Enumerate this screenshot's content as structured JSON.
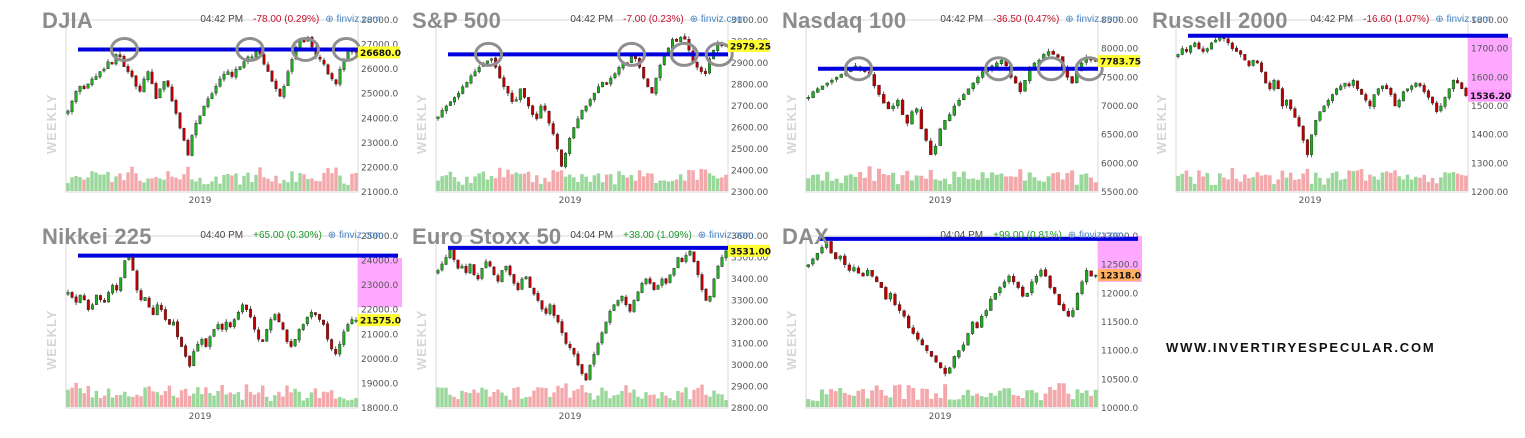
{
  "watermark": "WWW.INVERTIRYESPECULAR.COM",
  "brand": "finviz.com",
  "period_label": "WEEKLY",
  "colors": {
    "up": "#1faa1f",
    "down": "#c00000",
    "vol_up": "#9ad79a",
    "vol_down": "#f3a9ab",
    "resistance": "#0000dd",
    "price_tag_yellow": "#ffff33",
    "zone_pink": "#ff99ff",
    "circle": "#8f8f8f",
    "axis_text": "#555555",
    "title": "#8c8c8c"
  },
  "chart_data": [
    {
      "id": "djia",
      "type": "candlestick",
      "title": "DJIA",
      "time": "04:42 PM",
      "change": "-78.00 (0.29%)",
      "direction": "down",
      "x_label": "2019",
      "y_ticks": [
        "28000.0",
        "27000.0",
        "26000.0",
        "25000.0",
        "24000.0",
        "23000.0",
        "22000.0",
        "21000.0"
      ],
      "y_tick_values": [
        28000,
        27000,
        26000,
        25000,
        24000,
        23000,
        22000,
        21000
      ],
      "ylim": [
        21000,
        28000
      ],
      "last_price": "26680.0",
      "last_value": 26680,
      "price_tag": "yellow",
      "resistance": 26800,
      "circles": [
        0.2,
        0.63,
        0.82,
        0.96
      ],
      "weekly_closes": [
        24300,
        24700,
        25100,
        25300,
        25200,
        25400,
        25600,
        25700,
        25900,
        26000,
        26300,
        26200,
        26600,
        26500,
        26100,
        25900,
        25700,
        25300,
        25100,
        25600,
        25900,
        25400,
        24800,
        25200,
        25500,
        25300,
        24700,
        24200,
        23600,
        23100,
        22500,
        23300,
        23800,
        24100,
        24500,
        24800,
        25000,
        25300,
        25600,
        25800,
        25900,
        25700,
        26000,
        26100,
        26300,
        26500,
        26500,
        26800,
        26600,
        26200,
        25900,
        25500,
        25200,
        24900,
        25300,
        25900,
        26400,
        26900,
        27200,
        27100,
        27300,
        26900,
        26500,
        26400,
        26200,
        25800,
        25600,
        25400,
        26000,
        26400,
        26800,
        26700,
        26680
      ]
    },
    {
      "id": "sp500",
      "type": "candlestick",
      "title": "S&P 500",
      "time": "04:42 PM",
      "change": "-7.00 (0.23%)",
      "direction": "down",
      "x_label": "2019",
      "y_ticks": [
        "3100.00",
        "3000.00",
        "2900.00",
        "2800.00",
        "2700.00",
        "2600.00",
        "2500.00",
        "2400.00",
        "2300.00"
      ],
      "y_tick_values": [
        3100,
        3000,
        2900,
        2800,
        2700,
        2600,
        2500,
        2400,
        2300
      ],
      "ylim": [
        2300,
        3100
      ],
      "last_price": "2979.25",
      "last_value": 2979.25,
      "price_tag": "yellow",
      "resistance": 2940,
      "circles": [
        0.18,
        0.67,
        0.85,
        0.97
      ],
      "weekly_closes": [
        2650,
        2680,
        2700,
        2720,
        2740,
        2760,
        2790,
        2810,
        2840,
        2860,
        2880,
        2900,
        2910,
        2920,
        2880,
        2830,
        2790,
        2760,
        2720,
        2730,
        2780,
        2740,
        2700,
        2660,
        2640,
        2700,
        2680,
        2620,
        2570,
        2500,
        2420,
        2480,
        2550,
        2600,
        2640,
        2680,
        2700,
        2730,
        2760,
        2790,
        2810,
        2800,
        2830,
        2850,
        2880,
        2900,
        2900,
        2930,
        2920,
        2880,
        2830,
        2790,
        2760,
        2830,
        2890,
        2940,
        2970,
        3010,
        3000,
        3020,
        3010,
        2960,
        2900,
        2880,
        2860,
        2850,
        2920,
        2960,
        2990,
        2980,
        2979
      ]
    },
    {
      "id": "nasdaq100",
      "type": "candlestick",
      "title": "Nasdaq 100",
      "time": "04:42 PM",
      "change": "-36.50 (0.47%)",
      "direction": "down",
      "x_label": "2019",
      "y_ticks": [
        "8500.00",
        "8000.00",
        "7500.00",
        "7000.00",
        "6500.00",
        "6000.00",
        "5500.00"
      ],
      "y_tick_values": [
        8500,
        8000,
        7500,
        7000,
        6500,
        6000,
        5500
      ],
      "ylim": [
        5500,
        8500
      ],
      "last_price": "7783.75",
      "last_value": 7783.75,
      "price_tag": "yellow",
      "resistance": 7650,
      "circles": [
        0.18,
        0.66,
        0.84,
        0.97
      ],
      "weekly_closes": [
        7150,
        7250,
        7300,
        7350,
        7400,
        7450,
        7500,
        7550,
        7600,
        7650,
        7700,
        7650,
        7600,
        7550,
        7350,
        7200,
        7050,
        6950,
        7000,
        7100,
        6850,
        6700,
        6900,
        6950,
        6600,
        6400,
        6150,
        6300,
        6600,
        6750,
        6850,
        7000,
        7100,
        7200,
        7300,
        7400,
        7500,
        7600,
        7650,
        7700,
        7750,
        7800,
        7700,
        7500,
        7400,
        7250,
        7450,
        7650,
        7750,
        7800,
        7900,
        7950,
        7900,
        7850,
        7650,
        7500,
        7400,
        7600,
        7750,
        7850,
        7800,
        7783
      ]
    },
    {
      "id": "russell2000",
      "type": "candlestick",
      "title": "Russell 2000",
      "time": "04:42 PM",
      "change": "-16.60 (1.07%)",
      "direction": "down",
      "x_label": "2019",
      "y_ticks": [
        "1800.00",
        "1700.00",
        "1600.00",
        "1500.00",
        "1400.00",
        "1300.00",
        "1200.00"
      ],
      "y_tick_values": [
        1800,
        1700,
        1600,
        1500,
        1400,
        1300,
        1200
      ],
      "ylim": [
        1200,
        1800
      ],
      "last_price": "1536.20",
      "last_value": 1536.2,
      "price_tag": "pink",
      "zone": [
        1530,
        1740
      ],
      "resistance": 1745,
      "circles": [],
      "weekly_closes": [
        1680,
        1700,
        1690,
        1710,
        1720,
        1700,
        1690,
        1700,
        1720,
        1730,
        1740,
        1735,
        1720,
        1700,
        1690,
        1680,
        1660,
        1640,
        1660,
        1650,
        1620,
        1580,
        1560,
        1590,
        1560,
        1500,
        1520,
        1490,
        1460,
        1430,
        1380,
        1330,
        1400,
        1450,
        1480,
        1500,
        1520,
        1540,
        1560,
        1570,
        1580,
        1570,
        1590,
        1560,
        1540,
        1520,
        1500,
        1540,
        1560,
        1570,
        1560,
        1540,
        1500,
        1520,
        1550,
        1560,
        1570,
        1580,
        1570,
        1550,
        1530,
        1510,
        1480,
        1500,
        1530,
        1560,
        1590,
        1580,
        1560,
        1536
      ]
    },
    {
      "id": "nikkei225",
      "type": "candlestick",
      "title": "Nikkei 225",
      "time": "04:40 PM",
      "change": "+65.00 (0.30%)",
      "direction": "up",
      "x_label": "2019",
      "y_ticks": [
        "25000.0",
        "24000.0",
        "23000.0",
        "22000.0",
        "21000.0",
        "20000.0",
        "19000.0",
        "18000.0"
      ],
      "y_tick_values": [
        25000,
        24000,
        23000,
        22000,
        21000,
        20000,
        19000,
        18000
      ],
      "ylim": [
        18000,
        25000
      ],
      "last_price": "21575.0",
      "last_value": 21575,
      "price_tag": "yellow",
      "zone": [
        22100,
        24100
      ],
      "resistance": 24200,
      "circles": [],
      "weekly_closes": [
        22700,
        22500,
        22300,
        22600,
        22400,
        22000,
        22200,
        22600,
        22400,
        22300,
        22700,
        23000,
        22800,
        23300,
        24000,
        24200,
        23600,
        22800,
        22400,
        22500,
        22100,
        21800,
        22200,
        22000,
        21600,
        21400,
        21500,
        20900,
        20500,
        20100,
        19700,
        20300,
        20600,
        20800,
        20500,
        20900,
        21200,
        21400,
        21200,
        21500,
        21300,
        21600,
        21900,
        22200,
        22000,
        21700,
        21200,
        20800,
        20700,
        21200,
        21600,
        21800,
        21500,
        21200,
        20700,
        20500,
        20800,
        21200,
        21400,
        21700,
        21900,
        21800,
        21600,
        21400,
        20800,
        20400,
        20200,
        20600,
        21100,
        21400,
        21600,
        21575
      ]
    },
    {
      "id": "eurostoxx50",
      "type": "candlestick",
      "title": "Euro Stoxx 50",
      "time": "04:04 PM",
      "change": "+38.00 (1.09%)",
      "direction": "up",
      "x_label": "2019",
      "y_ticks": [
        "3600.00",
        "3500.00",
        "3400.00",
        "3300.00",
        "3200.00",
        "3100.00",
        "3000.00",
        "2900.00",
        "2800.00"
      ],
      "y_tick_values": [
        3600,
        3500,
        3400,
        3300,
        3200,
        3100,
        3000,
        2900,
        2800
      ],
      "ylim": [
        2800,
        3600
      ],
      "last_price": "3531.00",
      "last_value": 3531,
      "price_tag": "yellow",
      "resistance": 3545,
      "circles": [],
      "weekly_closes": [
        3440,
        3470,
        3500,
        3540,
        3490,
        3450,
        3460,
        3430,
        3470,
        3420,
        3400,
        3450,
        3480,
        3460,
        3420,
        3390,
        3440,
        3460,
        3420,
        3380,
        3350,
        3400,
        3410,
        3360,
        3330,
        3300,
        3260,
        3240,
        3280,
        3230,
        3200,
        3150,
        3100,
        3080,
        3050,
        3000,
        2960,
        2930,
        3000,
        3050,
        3100,
        3150,
        3200,
        3250,
        3280,
        3300,
        3320,
        3280,
        3250,
        3300,
        3340,
        3380,
        3400,
        3380,
        3350,
        3370,
        3400,
        3380,
        3420,
        3450,
        3500,
        3480,
        3510,
        3530,
        3480,
        3420,
        3350,
        3300,
        3320,
        3400,
        3460,
        3500,
        3531
      ]
    },
    {
      "id": "dax",
      "type": "candlestick",
      "title": "DAX",
      "time": "04:04 PM",
      "change": "+99.00 (0.81%)",
      "direction": "up",
      "x_label": "2019",
      "y_ticks": [
        "13000.0",
        "12500.0",
        "12000.0",
        "11500.0",
        "11000.0",
        "10500.0",
        "10000.0"
      ],
      "y_tick_values": [
        13000,
        12500,
        12000,
        11500,
        11000,
        10500,
        10000
      ],
      "ylim": [
        10000,
        13000
      ],
      "last_price": "12318.0",
      "last_value": 12318,
      "price_tag": "orange",
      "zone": [
        12200,
        13000
      ],
      "resistance": 12950,
      "circles": [],
      "weekly_closes": [
        12500,
        12600,
        12700,
        12800,
        12900,
        12700,
        12600,
        12650,
        12500,
        12400,
        12450,
        12350,
        12300,
        12400,
        12300,
        12200,
        12100,
        11900,
        12000,
        11800,
        11700,
        11600,
        11400,
        11300,
        11200,
        11100,
        11000,
        10900,
        10800,
        10700,
        10600,
        10700,
        10900,
        11000,
        11100,
        11300,
        11500,
        11400,
        11600,
        11700,
        11900,
        12000,
        12100,
        12200,
        12300,
        12200,
        12100,
        11950,
        12000,
        12200,
        12300,
        12400,
        12300,
        12100,
        12000,
        11800,
        11700,
        11600,
        11700,
        12000,
        12200,
        12400,
        12300,
        12318
      ]
    }
  ]
}
